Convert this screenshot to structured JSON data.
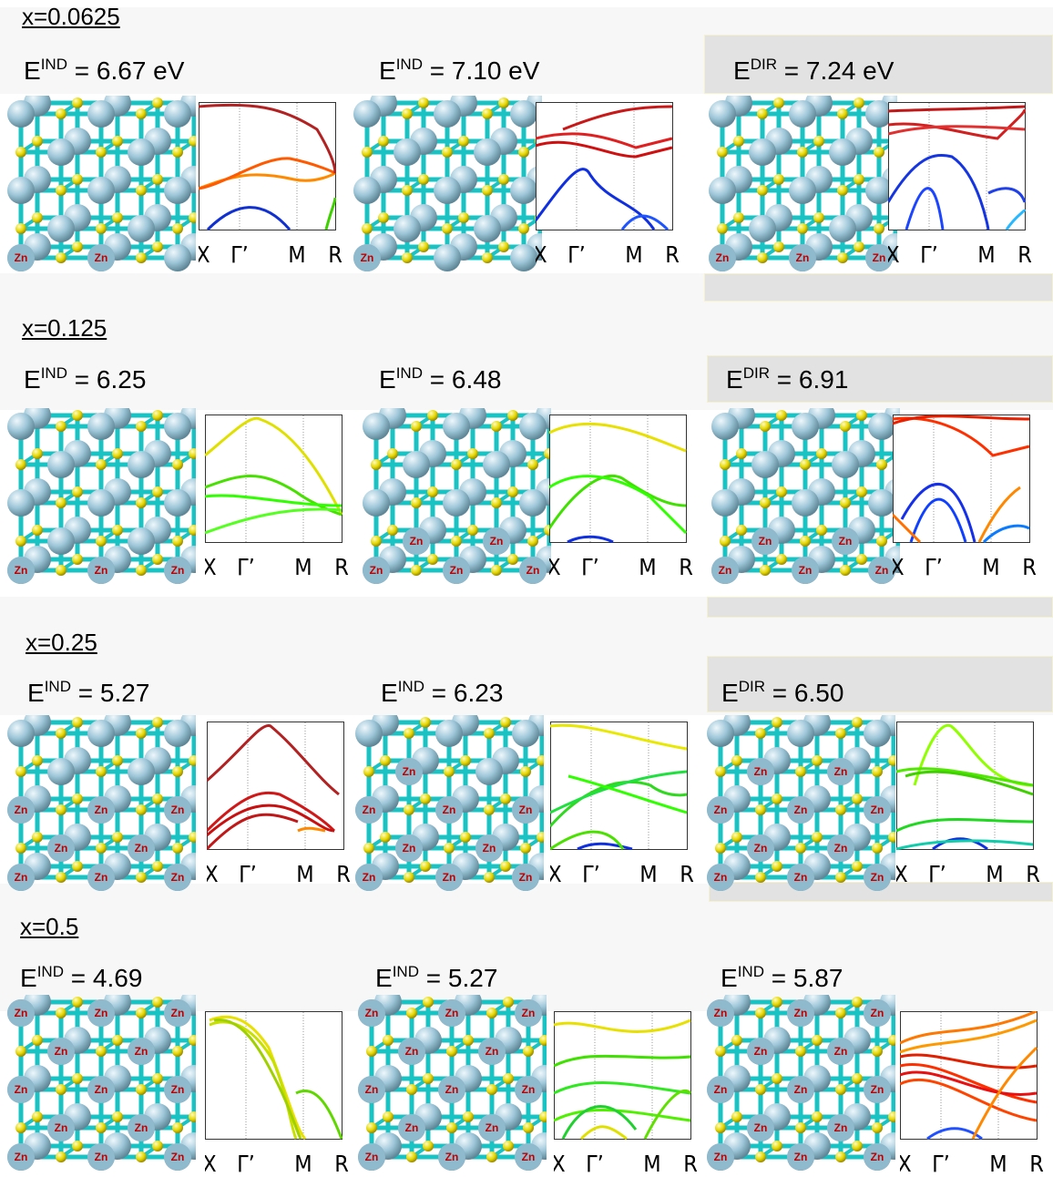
{
  "k_labels": [
    "X",
    "Γ’",
    "M",
    "R"
  ],
  "atom_label": "Zn",
  "rows": [
    {
      "heading": "x=0.0625",
      "panels": [
        {
          "kind": "IND",
          "value": "6.67 eV",
          "zn": 2,
          "bands": "v1"
        },
        {
          "kind": "IND",
          "value": "7.10 eV",
          "zn": 1,
          "bands": "v2"
        },
        {
          "kind": "DIR",
          "value": "7.24 eV",
          "zn": 3,
          "bands": "v3"
        }
      ]
    },
    {
      "heading": "x=0.125",
      "panels": [
        {
          "kind": "IND",
          "value": "6.25",
          "zn": 3,
          "bands": "v4"
        },
        {
          "kind": "IND",
          "value": "6.48",
          "zn": 5,
          "bands": "v5"
        },
        {
          "kind": "DIR",
          "value": "6.91",
          "zn": 5,
          "bands": "v6"
        }
      ]
    },
    {
      "heading": "x=0.25",
      "panels": [
        {
          "kind": "IND",
          "value": "5.27",
          "zn": 8,
          "bands": "v7"
        },
        {
          "kind": "IND",
          "value": "6.23",
          "zn": 9,
          "bands": "v8"
        },
        {
          "kind": "DIR",
          "value": "6.50",
          "zn": 10,
          "bands": "v9"
        }
      ]
    },
    {
      "heading": "x=0.5",
      "panels": [
        {
          "kind": "IND",
          "value": "4.69",
          "zn": 13,
          "bands": "v10"
        },
        {
          "kind": "IND",
          "value": "5.27",
          "zn": 14,
          "bands": "v11"
        },
        {
          "kind": "IND",
          "value": "5.87",
          "zn": 14,
          "bands": "v12"
        }
      ]
    }
  ],
  "colors": {
    "cation": "#9dc6d8",
    "anion": "#e6d800",
    "bond": "#19c3c3",
    "zn_text": "#c00000"
  }
}
